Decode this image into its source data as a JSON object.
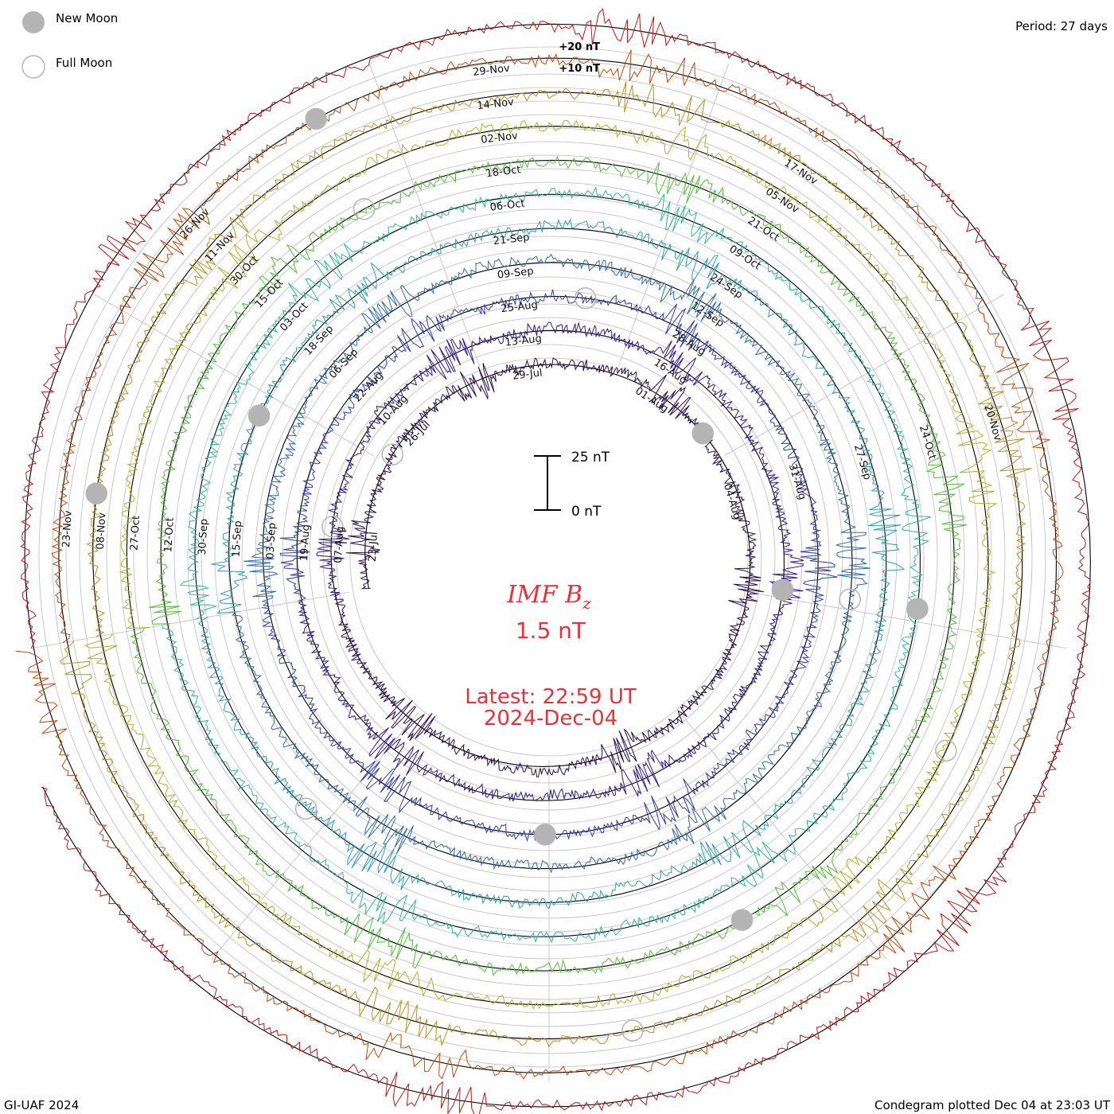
{
  "chart_data": {
    "type": "line",
    "subtype": "polar-condegram",
    "title": "IMF B",
    "title_subscript": "z",
    "current_value": "1.5 nT",
    "latest_time": "Latest: 22:59 UT",
    "latest_date": "2024-Dec-04",
    "period": "Period: 27 days",
    "scale_bar": {
      "top": "25 nT",
      "bottom": "0 nT"
    },
    "rim_labels": [
      "+20 nT",
      "+10 nT"
    ],
    "legend": [
      {
        "label": "New Moon",
        "symbol": "filled-circle"
      },
      {
        "label": "Full Moon",
        "symbol": "open-circle"
      }
    ],
    "footer_left": "GI-UAF 2024",
    "footer_right": "Condegram plotted Dec 04 at 23:03 UT",
    "colors": {
      "text_red": "#e8313a",
      "moon_gray": "#b4b4b4",
      "grid": "#bbbbbb",
      "baseline": "#000000"
    },
    "rotations": [
      {
        "name": "Jul-Aug",
        "color": "#2a0c4e",
        "labels": [
          "23-Jul",
          "26-Jul",
          "29-Jul",
          "01-Aug",
          "04-Aug"
        ]
      },
      {
        "name": "Aug",
        "color": "#2d1a92",
        "labels": [
          "07-Aug",
          "10-Aug",
          "13-Aug",
          "16-Aug"
        ]
      },
      {
        "name": "Aug-Sep",
        "color": "#2b3cae",
        "labels": [
          "19-Aug",
          "22-Aug",
          "25-Aug",
          "28-Aug",
          "31-Aug"
        ]
      },
      {
        "name": "Sep",
        "color": "#2e6aae",
        "labels": [
          "03-Sep",
          "06-Sep",
          "09-Sep",
          "12-Sep"
        ]
      },
      {
        "name": "Sep-Oct",
        "color": "#2f9eb6",
        "labels": [
          "15-Sep",
          "18-Sep",
          "21-Sep",
          "24-Sep",
          "27-Sep"
        ]
      },
      {
        "name": "Oct-a",
        "color": "#30b88e",
        "labels": [
          "30-Sep",
          "03-Oct",
          "06-Oct",
          "09-Oct"
        ]
      },
      {
        "name": "Oct-b",
        "color": "#53be3c",
        "labels": [
          "12-Oct",
          "15-Oct",
          "18-Oct",
          "21-Oct",
          "24-Oct"
        ]
      },
      {
        "name": "Oct-Nov",
        "color": "#a6b52a",
        "labels": [
          "27-Oct",
          "30-Oct",
          "02-Nov",
          "05-Nov"
        ]
      },
      {
        "name": "Nov-a",
        "color": "#b59020",
        "labels": [
          "08-Nov",
          "11-Nov",
          "14-Nov",
          "17-Nov",
          "20-Nov"
        ]
      },
      {
        "name": "Nov-b",
        "color": "#c04a0f",
        "labels": [
          "23-Nov",
          "26-Nov",
          "29-Nov"
        ]
      },
      {
        "name": "Dec",
        "color": "#c01510",
        "labels": []
      }
    ],
    "y_unit": "nT",
    "ring_scale": "+10 nT per ring",
    "grid": true
  }
}
